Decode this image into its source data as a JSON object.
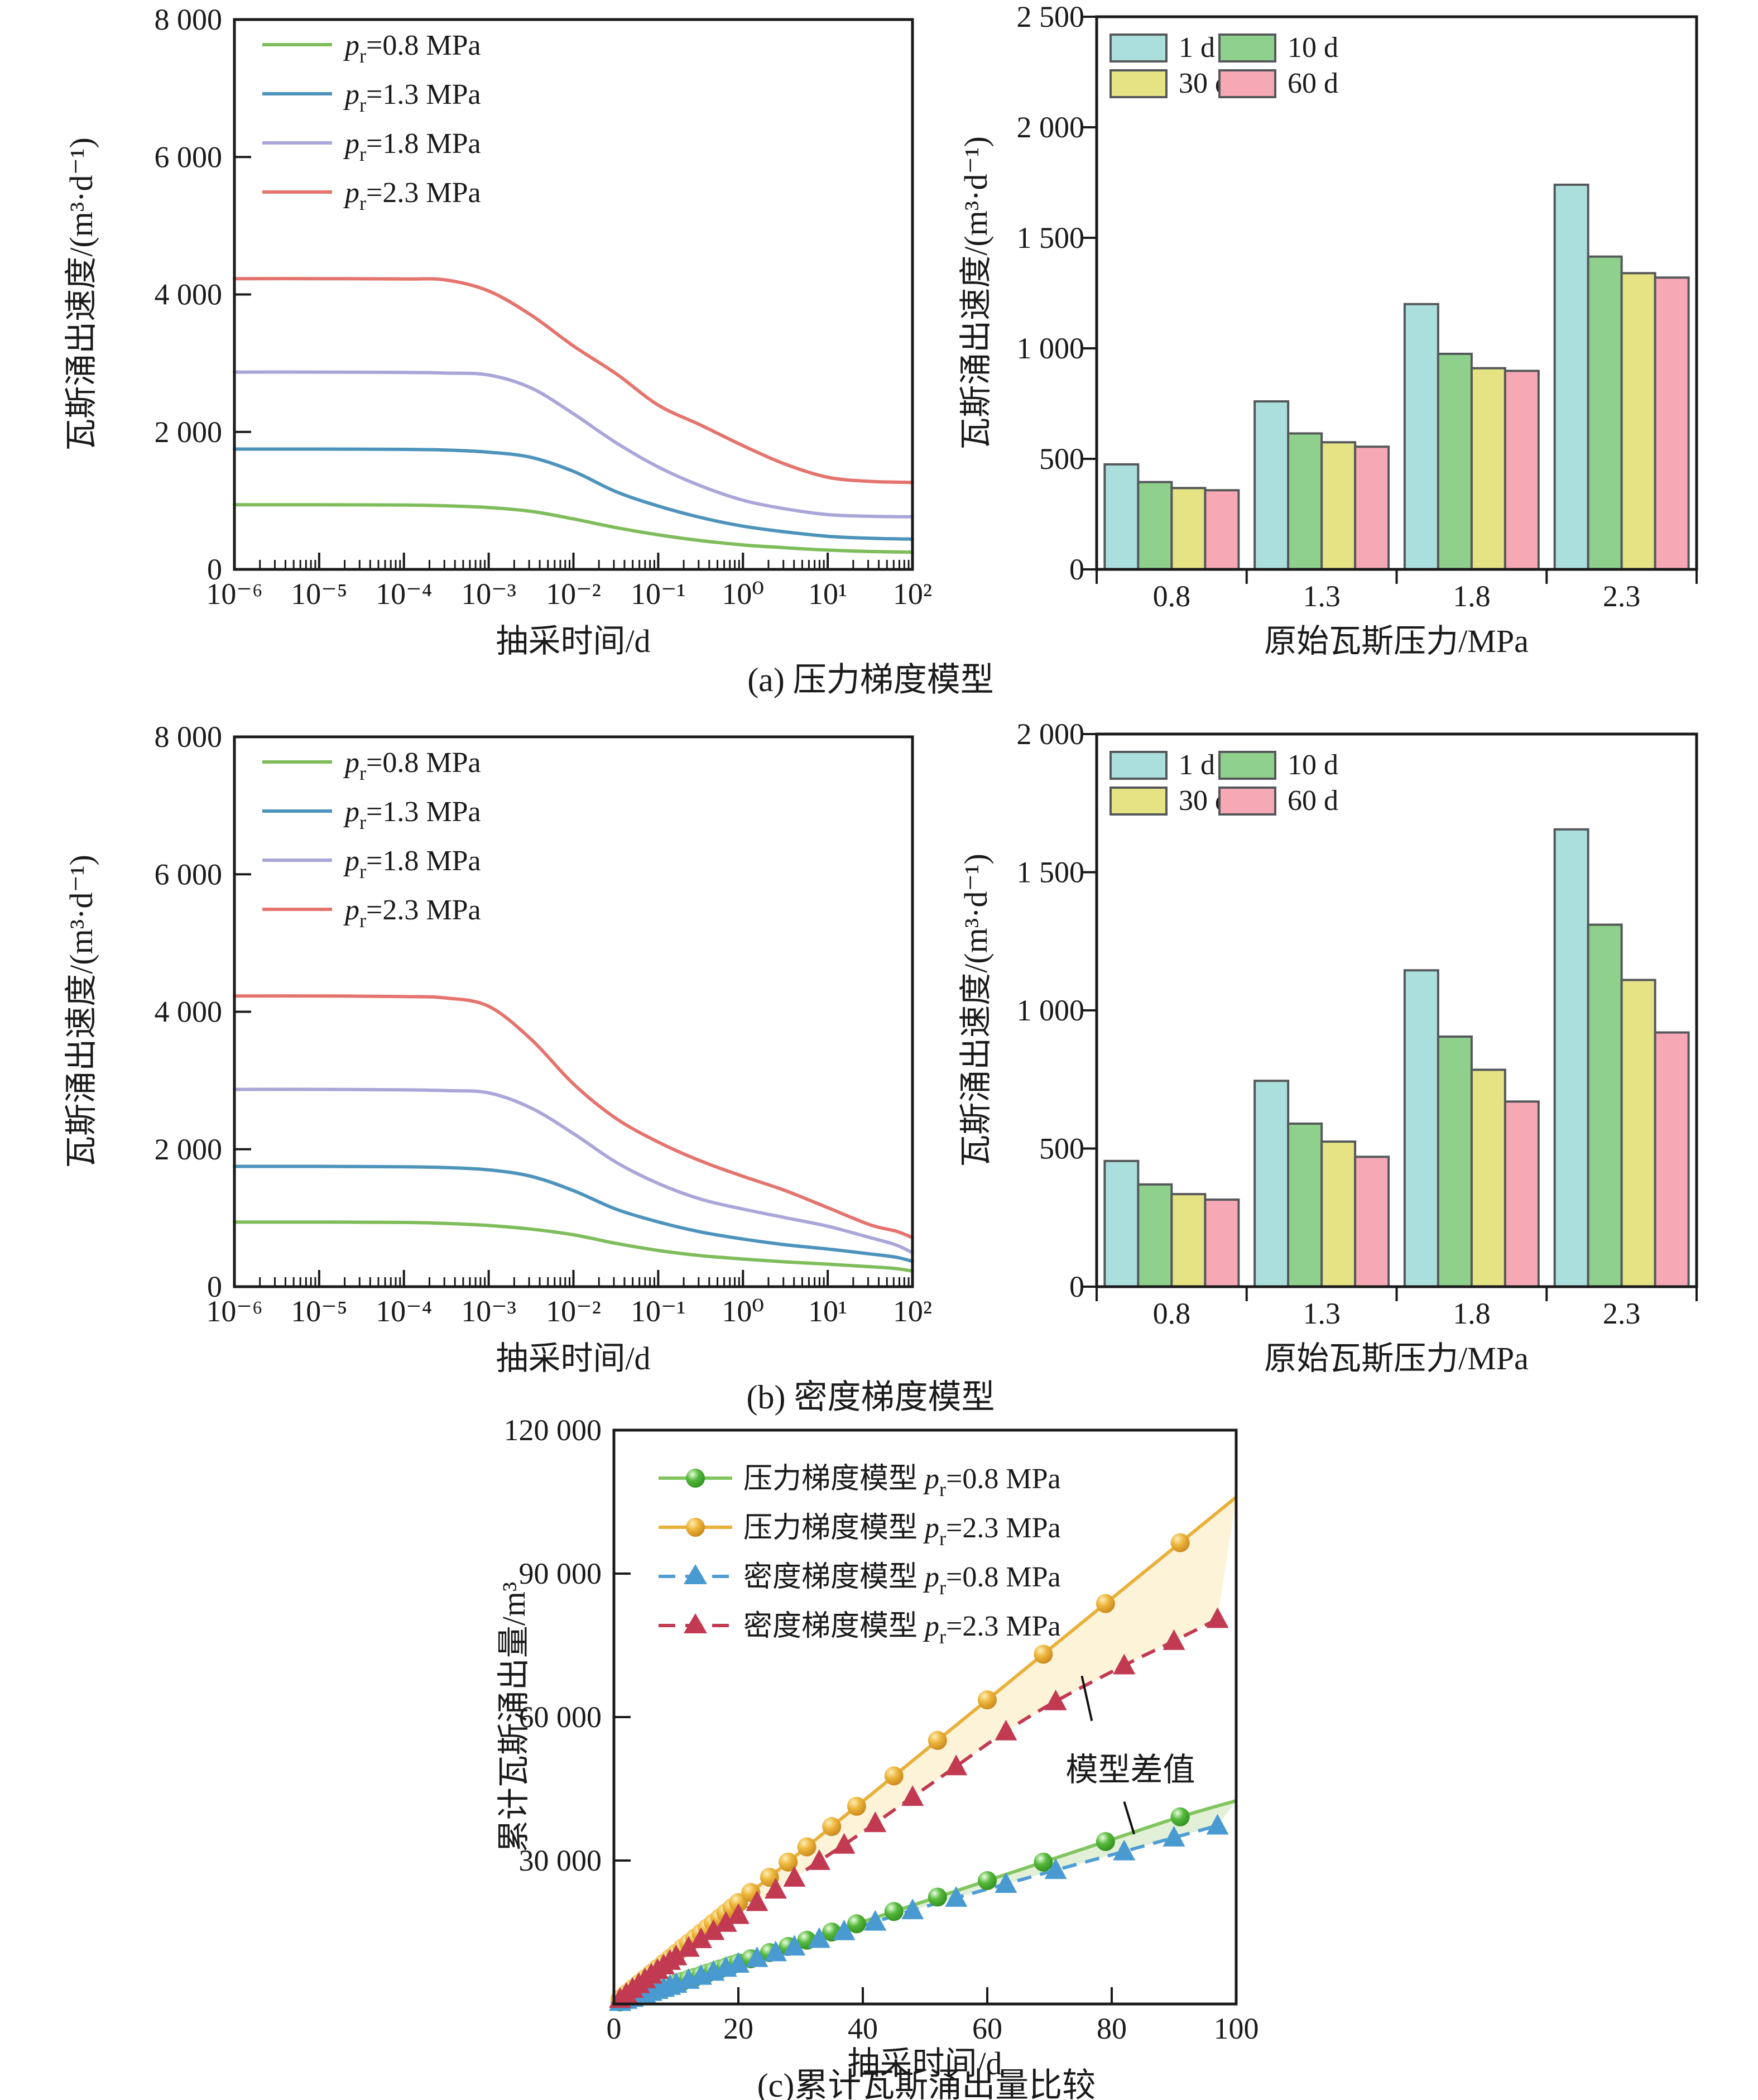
{
  "captions": {
    "a": "(a) 压力梯度模型",
    "b": "(b) 密度梯度模型",
    "c": "(c)累计瓦斯涌出量比较"
  },
  "annotation_label": "模型差值",
  "chart_data": [
    {
      "id": "a_left",
      "type": "line",
      "xscale": "log",
      "xlabel": "抽采时间/d",
      "ylabel": "瓦斯涌出速度/(m³·d⁻¹)",
      "ylim": [
        0,
        8000
      ],
      "yticks": [
        {
          "v": 0,
          "label": "0"
        },
        {
          "v": 2000,
          "label": "2 000"
        },
        {
          "v": 4000,
          "label": "4 000"
        },
        {
          "v": 6000,
          "label": "6 000"
        },
        {
          "v": 8000,
          "label": "8 000"
        }
      ],
      "xticks": [
        {
          "v": -6,
          "label": "10⁻⁶"
        },
        {
          "v": -5,
          "label": "10⁻⁵"
        },
        {
          "v": -4,
          "label": "10⁻⁴"
        },
        {
          "v": -3,
          "label": "10⁻³"
        },
        {
          "v": -2,
          "label": "10⁻²"
        },
        {
          "v": -1,
          "label": "10⁻¹"
        },
        {
          "v": 0,
          "label": "10⁰"
        },
        {
          "v": 1,
          "label": "10¹"
        },
        {
          "v": 2,
          "label": "10²"
        }
      ],
      "legend": [
        {
          "p": "p",
          "sub": "r",
          "rest": "=0.8 MPa"
        },
        {
          "p": "p",
          "sub": "r",
          "rest": "=1.3 MPa"
        },
        {
          "p": "p",
          "sub": "r",
          "rest": "=1.8 MPa"
        },
        {
          "p": "p",
          "sub": "r",
          "rest": "=2.3 MPa"
        }
      ],
      "series": [
        {
          "name": "pr=0.8 MPa",
          "color": "#7fbd5b",
          "x": [
            -6,
            -5,
            -4,
            -3.5,
            -3,
            -2.5,
            -2,
            -1.5,
            -1,
            -0.5,
            0,
            0.5,
            1,
            1.5,
            2
          ],
          "y": [
            940,
            940,
            936,
            925,
            900,
            845,
            734,
            608,
            503,
            419,
            356,
            315,
            281,
            260,
            250
          ]
        },
        {
          "name": "pr=1.3 MPa",
          "color": "#4d93bb",
          "x": [
            -6,
            -5,
            -4,
            -3.5,
            -3,
            -2.5,
            -2,
            -1.5,
            -1,
            -0.5,
            0,
            0.5,
            1,
            1.5,
            2
          ],
          "y": [
            1750,
            1750,
            1746,
            1736,
            1705,
            1630,
            1426,
            1132,
            922,
            755,
            629,
            545,
            482,
            452,
            440
          ]
        },
        {
          "name": "pr=1.8 MPa",
          "color": "#aaa6d9",
          "x": [
            -6,
            -5,
            -4,
            -3.5,
            -3,
            -2.5,
            -2,
            -1.5,
            -1,
            -0.5,
            0,
            0.5,
            1,
            1.5,
            2
          ],
          "y": [
            2870,
            2870,
            2866,
            2856,
            2828,
            2640,
            2264,
            1845,
            1490,
            1216,
            1006,
            880,
            797,
            772,
            765
          ]
        },
        {
          "name": "pr=2.3 MPa",
          "color": "#e4746d",
          "x": [
            -6,
            -5,
            -4,
            -3.5,
            -3,
            -2.5,
            -2,
            -1.5,
            -1,
            -0.5,
            0,
            0.5,
            1,
            1.5,
            2
          ],
          "y": [
            4230,
            4230,
            4226,
            4210,
            4050,
            3700,
            3250,
            2850,
            2390,
            2100,
            1800,
            1530,
            1340,
            1280,
            1265
          ]
        }
      ]
    },
    {
      "id": "a_right",
      "type": "bar",
      "xlabel": "原始瓦斯压力/MPa",
      "ylabel": "瓦斯涌出速度/(m³·d⁻¹)",
      "categories": [
        "0.8",
        "1.3",
        "1.8",
        "2.3"
      ],
      "ylim": [
        0,
        2500
      ],
      "yticks": [
        {
          "v": 0,
          "label": "0"
        },
        {
          "v": 500,
          "label": "500"
        },
        {
          "v": 1000,
          "label": "1 000"
        },
        {
          "v": 1500,
          "label": "1 500"
        },
        {
          "v": 2000,
          "label": "2 000"
        },
        {
          "v": 2500,
          "label": "2 500"
        }
      ],
      "series": [
        {
          "name": "1 d",
          "color": "#abdfdd",
          "values": [
            475,
            760,
            1200,
            1740
          ]
        },
        {
          "name": "10 d",
          "color": "#8fd18c",
          "values": [
            395,
            615,
            975,
            1415
          ]
        },
        {
          "name": "30 d",
          "color": "#e5e384",
          "values": [
            368,
            575,
            910,
            1340
          ]
        },
        {
          "name": "60 d",
          "color": "#f7a8b5",
          "values": [
            358,
            555,
            898,
            1320
          ]
        }
      ]
    },
    {
      "id": "b_left",
      "type": "line",
      "xscale": "log",
      "xlabel": "抽采时间/d",
      "ylabel": "瓦斯涌出速度/(m³·d⁻¹)",
      "ylim": [
        0,
        8000
      ],
      "yticks": [
        {
          "v": 0,
          "label": "0"
        },
        {
          "v": 2000,
          "label": "2 000"
        },
        {
          "v": 4000,
          "label": "4 000"
        },
        {
          "v": 6000,
          "label": "6 000"
        },
        {
          "v": 8000,
          "label": "8 000"
        }
      ],
      "xticks": [
        {
          "v": -6,
          "label": "10⁻⁶"
        },
        {
          "v": -5,
          "label": "10⁻⁵"
        },
        {
          "v": -4,
          "label": "10⁻⁴"
        },
        {
          "v": -3,
          "label": "10⁻³"
        },
        {
          "v": -2,
          "label": "10⁻²"
        },
        {
          "v": -1,
          "label": "10⁻¹"
        },
        {
          "v": 0,
          "label": "10⁰"
        },
        {
          "v": 1,
          "label": "10¹"
        },
        {
          "v": 2,
          "label": "10²"
        }
      ],
      "legend": [
        {
          "p": "p",
          "sub": "r",
          "rest": "=0.8 MPa"
        },
        {
          "p": "p",
          "sub": "r",
          "rest": "=1.3 MPa"
        },
        {
          "p": "p",
          "sub": "r",
          "rest": "=1.8 MPa"
        },
        {
          "p": "p",
          "sub": "r",
          "rest": "=2.3 MPa"
        }
      ],
      "series": [
        {
          "name": "pr=0.8 MPa",
          "color": "#7fbd5b",
          "x": [
            -6,
            -5,
            -4,
            -3.5,
            -3,
            -2.5,
            -2,
            -1.5,
            -1,
            -0.5,
            0,
            0.5,
            1,
            1.5,
            1.8,
            2
          ],
          "y": [
            940,
            940,
            935,
            920,
            890,
            838,
            755,
            631,
            527,
            452,
            402,
            361,
            328,
            290,
            264,
            228
          ]
        },
        {
          "name": "pr=1.3 MPa",
          "color": "#4d93bb",
          "x": [
            -6,
            -5,
            -4,
            -3.5,
            -3,
            -2.5,
            -2,
            -1.5,
            -1,
            -0.5,
            0,
            0.5,
            1,
            1.5,
            1.8,
            2
          ],
          "y": [
            1750,
            1750,
            1744,
            1733,
            1700,
            1606,
            1398,
            1129,
            942,
            797,
            693,
            610,
            548,
            477,
            430,
            369
          ]
        },
        {
          "name": "pr=1.8 MPa",
          "color": "#aaa6d9",
          "x": [
            -6,
            -5,
            -4,
            -3.5,
            -3,
            -2.5,
            -2,
            -1.5,
            -1,
            -0.5,
            0,
            0.5,
            1,
            1.5,
            1.8,
            2
          ],
          "y": [
            2870,
            2870,
            2864,
            2852,
            2820,
            2600,
            2228,
            1813,
            1502,
            1274,
            1129,
            1004,
            880,
            714,
            610,
            494
          ]
        },
        {
          "name": "pr=2.3 MPa",
          "color": "#e4746d",
          "x": [
            -6,
            -5,
            -4,
            -3.5,
            -3,
            -2.5,
            -2,
            -1.5,
            -1,
            -0.5,
            0,
            0.5,
            1,
            1.5,
            1.8,
            2
          ],
          "y": [
            4230,
            4230,
            4222,
            4200,
            4080,
            3600,
            2950,
            2450,
            2104,
            1830,
            1606,
            1398,
            1150,
            900,
            810,
            714
          ]
        }
      ]
    },
    {
      "id": "b_right",
      "type": "bar",
      "xlabel": "原始瓦斯压力/MPa",
      "ylabel": "瓦斯涌出速度/(m³·d⁻¹)",
      "categories": [
        "0.8",
        "1.3",
        "1.8",
        "2.3"
      ],
      "ylim": [
        0,
        2000
      ],
      "yticks": [
        {
          "v": 0,
          "label": "0"
        },
        {
          "v": 500,
          "label": "500"
        },
        {
          "v": 1000,
          "label": "1 000"
        },
        {
          "v": 1500,
          "label": "1 500"
        },
        {
          "v": 2000,
          "label": "2 000"
        }
      ],
      "series": [
        {
          "name": "1 d",
          "color": "#abdfdd",
          "values": [
            455,
            745,
            1145,
            1655
          ]
        },
        {
          "name": "10 d",
          "color": "#8fd18c",
          "values": [
            370,
            590,
            905,
            1310
          ]
        },
        {
          "name": "30 d",
          "color": "#e5e384",
          "values": [
            335,
            525,
            785,
            1110
          ]
        },
        {
          "name": "60 d",
          "color": "#f7a8b5",
          "values": [
            315,
            470,
            670,
            920
          ]
        }
      ]
    },
    {
      "id": "c",
      "type": "line",
      "xscale": "linear",
      "xlabel": "抽采时间/d",
      "ylabel": "累计瓦斯涌出量/m³",
      "xlim": [
        0,
        100
      ],
      "ylim": [
        0,
        120000
      ],
      "yticks": [
        {
          "v": 30000,
          "label": "30 000"
        },
        {
          "v": 60000,
          "label": "60 000"
        },
        {
          "v": 90000,
          "label": "90 000"
        },
        {
          "v": 120000,
          "label": "120 000"
        }
      ],
      "xticks": [
        {
          "v": 0,
          "label": "0"
        },
        {
          "v": 20,
          "label": "20"
        },
        {
          "v": 40,
          "label": "40"
        },
        {
          "v": 60,
          "label": "60"
        },
        {
          "v": 80,
          "label": "80"
        },
        {
          "v": 100,
          "label": "100"
        }
      ],
      "legend": [
        {
          "model": "压力梯度模型 ",
          "p": "p",
          "sub": "r",
          "rest": "=0.8 MPa"
        },
        {
          "model": "压力梯度模型 ",
          "p": "p",
          "sub": "r",
          "rest": "=2.3 MPa"
        },
        {
          "model": "密度梯度模型 ",
          "p": "p",
          "sub": "r",
          "rest": "=0.8 MPa"
        },
        {
          "model": "密度梯度模型 ",
          "p": "p",
          "sub": "r",
          "rest": "=2.3 MPa"
        }
      ],
      "bands": [
        {
          "a": 1,
          "b": 3,
          "color": "#fcf3d8"
        },
        {
          "a": 0,
          "b": 2,
          "color": "#e2f0d8"
        }
      ],
      "annotation": {
        "text": "模型差值",
        "tx": 83,
        "ty": 49000,
        "lines": [
          [
            75.2,
            68600,
            76.8,
            59200
          ],
          [
            82.0,
            42300,
            83.6,
            35500
          ]
        ]
      },
      "series": [
        {
          "name": "压力梯度模型 pr=0.8 MPa",
          "line_color": "#82c55e",
          "marker": "circle",
          "marker_color": "#4cae35",
          "dash": null,
          "last_no_marker": true,
          "x": [
            1,
            2,
            3,
            4,
            5,
            6,
            7,
            8,
            9,
            10,
            11,
            12,
            13,
            14,
            15,
            16,
            17,
            18,
            19,
            20,
            22,
            25,
            28,
            31,
            35,
            39,
            45,
            52,
            60,
            69,
            79,
            91,
            100
          ],
          "y": [
            430,
            860,
            1290,
            1720,
            2150,
            2580,
            3010,
            3440,
            3870,
            4300,
            4730,
            5160,
            5590,
            6020,
            6450,
            6880,
            7310,
            7740,
            8170,
            8600,
            9460,
            10750,
            12040,
            13330,
            15050,
            16770,
            19350,
            22360,
            25800,
            29670,
            33970,
            39130,
            42500
          ]
        },
        {
          "name": "压力梯度模型 pr=2.3 MPa",
          "line_color": "#e9b03a",
          "marker": "circle",
          "marker_color": "#e8a52c",
          "dash": null,
          "last_no_marker": true,
          "x": [
            1,
            2,
            3,
            4,
            5,
            6,
            7,
            8,
            9,
            10,
            11,
            12,
            13,
            14,
            15,
            16,
            17,
            18,
            19,
            20,
            22,
            25,
            28,
            31,
            35,
            39,
            45,
            52,
            60,
            69,
            79,
            91,
            100
          ],
          "y": [
            1060,
            2120,
            3180,
            4240,
            5300,
            6360,
            7420,
            8480,
            9540,
            10600,
            11660,
            12720,
            13780,
            14840,
            15900,
            16960,
            18020,
            19080,
            20140,
            21200,
            23320,
            26500,
            29680,
            32860,
            37100,
            41340,
            47700,
            55120,
            63600,
            73140,
            83740,
            96460,
            106000
          ]
        },
        {
          "name": "密度梯度模型 pr=0.8 MPa",
          "line_color": "#4f9dd4",
          "marker": "triangle",
          "marker_color": "#4a9ad2",
          "dash": "26 16",
          "last_no_marker": false,
          "x": [
            1,
            2,
            3,
            4,
            5,
            6,
            7,
            8,
            9,
            10,
            12,
            14,
            16,
            18,
            20,
            23,
            26,
            29,
            33,
            37,
            42,
            48,
            55,
            63,
            71,
            82,
            90,
            97
          ],
          "y": [
            420,
            840,
            1260,
            1680,
            2100,
            2520,
            2940,
            3360,
            3780,
            4200,
            5040,
            5880,
            6720,
            7560,
            8400,
            9600,
            10800,
            12000,
            13600,
            15200,
            17200,
            19600,
            22200,
            25100,
            28000,
            31900,
            34800,
            37300
          ]
        },
        {
          "name": "密度梯度模型 pr=2.3 MPa",
          "line_color": "#c23a52",
          "marker": "triangle",
          "marker_color": "#c23a52",
          "dash": "26 16",
          "last_no_marker": false,
          "x": [
            1,
            2,
            3,
            4,
            5,
            6,
            7,
            8,
            9,
            10,
            12,
            14,
            16,
            18,
            20,
            23,
            26,
            29,
            33,
            37,
            42,
            48,
            55,
            63,
            71,
            82,
            90,
            97
          ],
          "y": [
            1050,
            2100,
            3150,
            4150,
            5150,
            6150,
            7100,
            8050,
            9000,
            9950,
            11750,
            13550,
            15250,
            16950,
            18600,
            21300,
            23900,
            26400,
            29900,
            33300,
            37800,
            43300,
            49700,
            57000,
            63300,
            70800,
            75900,
            80500
          ]
        }
      ]
    }
  ]
}
